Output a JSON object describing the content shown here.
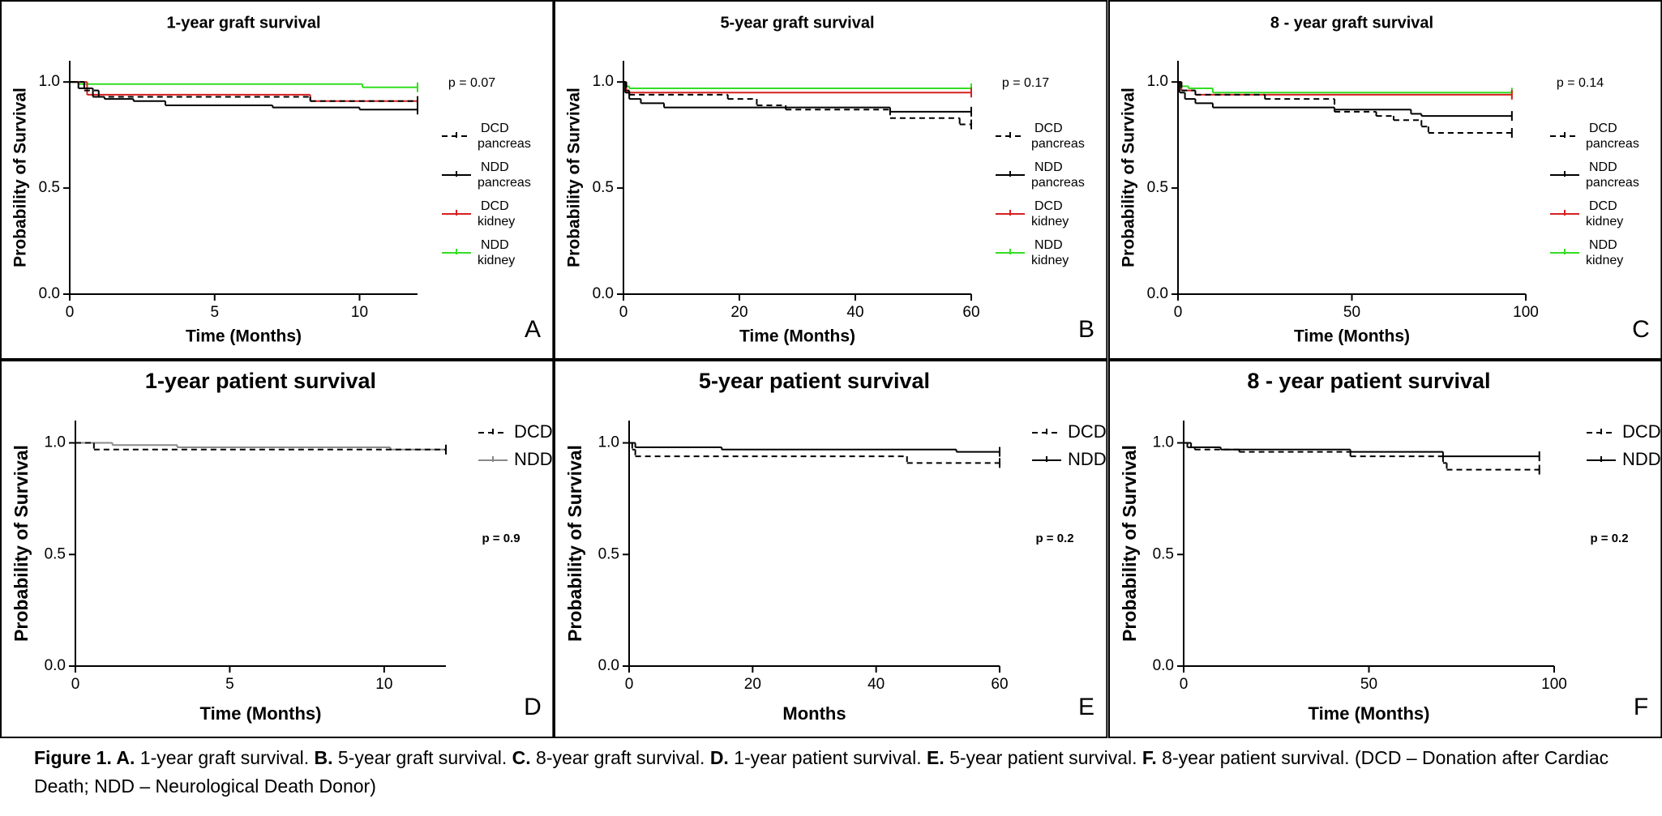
{
  "chart_data": [
    {
      "type": "line",
      "step": true,
      "title": "1-year graft survival",
      "panel": "A",
      "xlabel": "Time (Months)",
      "ylabel": "Probability of Survival",
      "annotation": "p = 0.07",
      "xlim": [
        0,
        12
      ],
      "ylim": [
        0,
        1.1
      ],
      "xticks": [
        0,
        5,
        10
      ],
      "yticks": [
        {
          "value": 0,
          "label": "0.0"
        },
        {
          "value": 0.5,
          "label": "0.5"
        },
        {
          "value": 1,
          "label": "1.0"
        }
      ],
      "series": [
        {
          "name": "DCD pancreas",
          "color": "#000000",
          "dash": true,
          "x": [
            0,
            0.5,
            1,
            8.3,
            12
          ],
          "values": [
            1,
            0.96,
            0.93,
            0.91,
            0.91
          ]
        },
        {
          "name": "NDD pancreas",
          "color": "#000000",
          "dash": false,
          "x": [
            0,
            0.3,
            0.8,
            1.2,
            2.2,
            3.3,
            7,
            10,
            12
          ],
          "values": [
            1,
            0.97,
            0.93,
            0.92,
            0.91,
            0.89,
            0.88,
            0.87,
            0.87
          ]
        },
        {
          "name": "DCD kidney",
          "color": "#d62020",
          "dash": false,
          "x": [
            0,
            0.6,
            8.3,
            12
          ],
          "values": [
            1,
            0.94,
            0.91,
            0.91
          ]
        },
        {
          "name": "NDD kidney",
          "color": "#33dd22",
          "dash": false,
          "x": [
            0,
            0.3,
            10.1,
            12
          ],
          "values": [
            1,
            0.99,
            0.975,
            0.975
          ]
        }
      ]
    },
    {
      "type": "line",
      "step": true,
      "title": "5-year graft survival",
      "panel": "B",
      "xlabel": "Time (Months)",
      "ylabel": "Probability of Survival",
      "annotation": "p = 0.17",
      "xlim": [
        0,
        60
      ],
      "ylim": [
        0,
        1.1
      ],
      "xticks": [
        0,
        20,
        40,
        60
      ],
      "yticks": [
        {
          "value": 0,
          "label": "0.0"
        },
        {
          "value": 0.5,
          "label": "0.5"
        },
        {
          "value": 1,
          "label": "1.0"
        }
      ],
      "series": [
        {
          "name": "DCD pancreas",
          "color": "#000000",
          "dash": true,
          "x": [
            0,
            0.5,
            1,
            18,
            23,
            28,
            46,
            58,
            60
          ],
          "values": [
            1,
            0.96,
            0.94,
            0.92,
            0.89,
            0.87,
            0.83,
            0.8,
            0.8
          ]
        },
        {
          "name": "NDD pancreas",
          "color": "#000000",
          "dash": false,
          "x": [
            0,
            0.3,
            1,
            3,
            7,
            46,
            60
          ],
          "values": [
            1,
            0.95,
            0.92,
            0.9,
            0.88,
            0.86,
            0.86
          ]
        },
        {
          "name": "DCD kidney",
          "color": "#d62020",
          "dash": false,
          "x": [
            0,
            0.5,
            60
          ],
          "values": [
            1,
            0.95,
            0.95
          ]
        },
        {
          "name": "NDD kidney",
          "color": "#33dd22",
          "dash": false,
          "x": [
            0,
            0.3,
            1,
            60
          ],
          "values": [
            1,
            0.98,
            0.97,
            0.97
          ]
        }
      ]
    },
    {
      "type": "line",
      "step": true,
      "title": "8 - year graft survival",
      "panel": "C",
      "xlabel": "Time (Months)",
      "ylabel": "Probability of Survival",
      "annotation": "p = 0.14",
      "xlim": [
        0,
        100
      ],
      "ylim": [
        0,
        1.1
      ],
      "xticks": [
        0,
        50,
        100
      ],
      "yticks": [
        {
          "value": 0,
          "label": "0.0"
        },
        {
          "value": 0.5,
          "label": "0.5"
        },
        {
          "value": 1,
          "label": "1.0"
        }
      ],
      "series": [
        {
          "name": "DCD pancreas",
          "color": "#000000",
          "dash": true,
          "x": [
            0,
            1,
            5,
            25,
            45,
            57,
            62,
            70,
            72,
            96
          ],
          "values": [
            1,
            0.96,
            0.94,
            0.92,
            0.86,
            0.84,
            0.82,
            0.79,
            0.76,
            0.76
          ]
        },
        {
          "name": "NDD pancreas",
          "color": "#000000",
          "dash": false,
          "x": [
            0,
            0.5,
            2,
            5,
            10,
            45,
            67,
            70,
            96
          ],
          "values": [
            1,
            0.95,
            0.92,
            0.9,
            0.88,
            0.87,
            0.85,
            0.84,
            0.84
          ]
        },
        {
          "name": "DCD kidney",
          "color": "#d62020",
          "dash": false,
          "x": [
            0,
            1,
            5,
            96
          ],
          "values": [
            1,
            0.96,
            0.94,
            0.94
          ]
        },
        {
          "name": "NDD kidney",
          "color": "#33dd22",
          "dash": false,
          "x": [
            0,
            1,
            3,
            10,
            96
          ],
          "values": [
            1,
            0.98,
            0.97,
            0.95,
            0.95
          ]
        }
      ]
    },
    {
      "type": "line",
      "step": true,
      "title": "1-year patient survival",
      "panel": "D",
      "xlabel": "Time (Months)",
      "ylabel": "Probability of Survival",
      "annotation": "p = 0.9",
      "xlim": [
        0,
        12
      ],
      "ylim": [
        0,
        1.1
      ],
      "xticks": [
        0,
        5,
        10
      ],
      "yticks": [
        {
          "value": 0,
          "label": "0.0"
        },
        {
          "value": 0.5,
          "label": "0.5"
        },
        {
          "value": 1,
          "label": "1.0"
        }
      ],
      "series": [
        {
          "name": "DCD",
          "color": "#000000",
          "dash": true,
          "x": [
            0,
            0.6,
            12
          ],
          "values": [
            1,
            0.97,
            0.97
          ]
        },
        {
          "name": "NDD",
          "color": "#888888",
          "dash": false,
          "x": [
            0,
            1.2,
            3.3,
            10.2,
            12
          ],
          "values": [
            1,
            0.99,
            0.98,
            0.97,
            0.97
          ]
        }
      ]
    },
    {
      "type": "line",
      "step": true,
      "title": "5-year patient survival",
      "panel": "E",
      "xlabel": "Months",
      "ylabel": "Probability of Survival",
      "annotation": "p = 0.2",
      "xlim": [
        0,
        60
      ],
      "ylim": [
        0,
        1.1
      ],
      "xticks": [
        0,
        20,
        40,
        60
      ],
      "yticks": [
        {
          "value": 0,
          "label": "0.0"
        },
        {
          "value": 0.5,
          "label": "0.5"
        },
        {
          "value": 1,
          "label": "1.0"
        }
      ],
      "series": [
        {
          "name": "DCD",
          "color": "#000000",
          "dash": true,
          "x": [
            0,
            0.5,
            1,
            45,
            60
          ],
          "values": [
            1,
            0.97,
            0.94,
            0.91,
            0.91
          ]
        },
        {
          "name": "NDD",
          "color": "#000000",
          "dash": false,
          "x": [
            0,
            1,
            15,
            53,
            60
          ],
          "values": [
            1,
            0.98,
            0.97,
            0.96,
            0.96
          ]
        }
      ]
    },
    {
      "type": "line",
      "step": true,
      "title": "8 - year patient survival",
      "panel": "F",
      "xlabel": "Time (Months)",
      "ylabel": "Probability of Survival",
      "annotation": "p = 0.2",
      "xlim": [
        0,
        100
      ],
      "ylim": [
        0,
        1.1
      ],
      "xticks": [
        0,
        50,
        100
      ],
      "yticks": [
        {
          "value": 0,
          "label": "0.0"
        },
        {
          "value": 0.5,
          "label": "0.5"
        },
        {
          "value": 1,
          "label": "1.0"
        }
      ],
      "series": [
        {
          "name": "DCD",
          "color": "#000000",
          "dash": true,
          "x": [
            0,
            1,
            3,
            15,
            45,
            70,
            71,
            96
          ],
          "values": [
            1,
            0.98,
            0.97,
            0.96,
            0.94,
            0.91,
            0.88,
            0.88
          ]
        },
        {
          "name": "NDD",
          "color": "#000000",
          "dash": false,
          "x": [
            0,
            2,
            10,
            45,
            70,
            96
          ],
          "values": [
            1,
            0.98,
            0.97,
            0.96,
            0.94,
            0.94
          ]
        }
      ]
    }
  ],
  "caption": [
    {
      "text": "Figure 1. A.",
      "bold": true
    },
    {
      "text": " 1-year graft survival. ",
      "bold": false
    },
    {
      "text": "B.",
      "bold": true
    },
    {
      "text": " 5-year graft survival. ",
      "bold": false
    },
    {
      "text": "C.",
      "bold": true
    },
    {
      "text": " 8-year graft survival. ",
      "bold": false
    },
    {
      "text": "D.",
      "bold": true
    },
    {
      "text": " 1-year patient survival. ",
      "bold": false
    },
    {
      "text": "E.",
      "bold": true
    },
    {
      "text": " 5-year patient survival. ",
      "bold": false
    },
    {
      "text": "F.",
      "bold": true
    },
    {
      "text": " 8-year patient survival. (DCD – Donation after Cardiac Death; NDD – Neurological Death Donor)",
      "bold": false
    }
  ]
}
